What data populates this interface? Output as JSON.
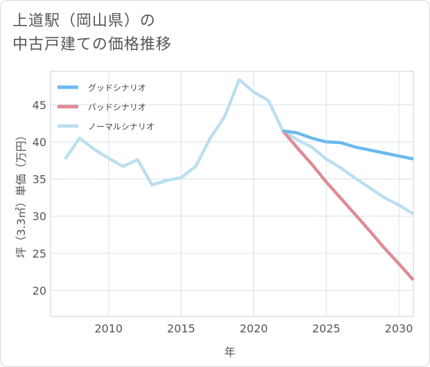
{
  "title_line1": "上道駅（岡山県）の",
  "title_line2": "中古戸建ての価格推移",
  "chart_data": {
    "type": "line",
    "title": "上道駅（岡山県）の中古戸建ての価格推移",
    "xlabel": "年",
    "ylabel": "坪（3.3㎡）単価（万円）",
    "xlim": [
      2006,
      2031
    ],
    "ylim": [
      16.5,
      49.5
    ],
    "xticks": [
      2010,
      2015,
      2020,
      2025,
      2030
    ],
    "yticks": [
      20,
      25,
      30,
      35,
      40,
      45
    ],
    "legend_position": "top-left",
    "series": [
      {
        "name": "グッドシナリオ",
        "color": "#6bb9ee",
        "x": [
          2022,
          2023,
          2024,
          2025,
          2026,
          2027,
          2028,
          2029,
          2030,
          2031
        ],
        "values": [
          41.5,
          41.2,
          40.5,
          40.0,
          39.9,
          39.3,
          38.9,
          38.5,
          38.1,
          37.7
        ]
      },
      {
        "name": "バッドシナリオ",
        "color": "#df8a95",
        "x": [
          2022,
          2023,
          2024,
          2025,
          2026,
          2027,
          2028,
          2029,
          2030,
          2031
        ],
        "values": [
          41.5,
          39.2,
          37.0,
          34.6,
          32.4,
          30.2,
          28.0,
          25.7,
          23.6,
          21.4
        ]
      },
      {
        "name": "ノーマルシナリオ",
        "color": "#bcdff0",
        "x": [
          2007,
          2008,
          2009,
          2010,
          2011,
          2012,
          2013,
          2014,
          2015,
          2016,
          2017,
          2018,
          2019,
          2020,
          2021,
          2022,
          2023,
          2024,
          2025,
          2026,
          2027,
          2028,
          2029,
          2030,
          2031
        ],
        "values": [
          37.7,
          40.5,
          39.0,
          37.8,
          36.7,
          37.6,
          34.2,
          34.8,
          35.2,
          36.7,
          40.5,
          43.4,
          48.4,
          46.7,
          45.6,
          41.5,
          40.3,
          39.3,
          37.7,
          36.5,
          35.1,
          33.8,
          32.5,
          31.5,
          30.3
        ]
      }
    ]
  }
}
